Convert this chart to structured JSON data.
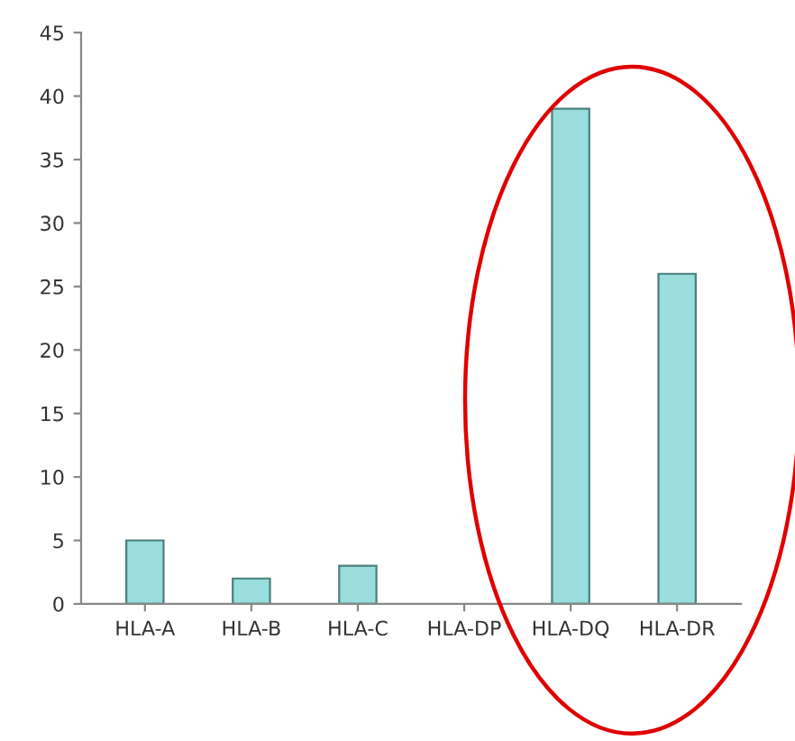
{
  "chart_data": {
    "type": "bar",
    "categories": [
      "HLA-A",
      "HLA-B",
      "HLA-C",
      "HLA-DP",
      "HLA-DQ",
      "HLA-DR"
    ],
    "values": [
      5,
      2,
      3,
      0,
      39,
      26
    ],
    "color": "#99dddd",
    "ylim": [
      0,
      45
    ],
    "yticks": [
      0,
      5,
      10,
      15,
      20,
      25,
      30,
      35,
      40,
      45
    ],
    "grid": false,
    "legend": false
  }
}
